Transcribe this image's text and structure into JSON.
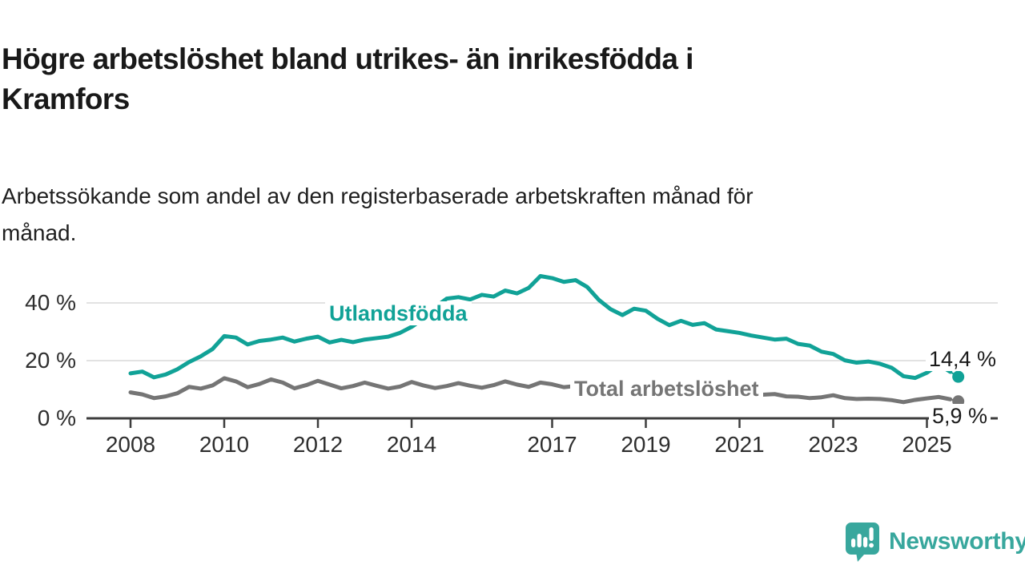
{
  "title_lines": [
    "Högre arbetslöshet bland utrikes- än inrikesfödda i",
    "Kramfors"
  ],
  "subtitle_lines": [
    "Arbetssökande som andel av den registerbaserade arbetskraften månad för",
    "månad."
  ],
  "chart_data": {
    "type": "line",
    "title": "Högre arbetslöshet bland utrikes- än inrikesfödda i Kramfors",
    "subtitle": "Arbetssökande som andel av den registerbaserade arbetskraften månad för månad.",
    "xlabel": "",
    "ylabel": "",
    "grid": "horizontal",
    "xlim": [
      2007.6,
      2026.3
    ],
    "ylim": [
      0,
      53
    ],
    "x_ticks": [
      2008,
      2010,
      2012,
      2014,
      2017,
      2019,
      2021,
      2023,
      2025
    ],
    "x_tick_labels": [
      "2008",
      "2010",
      "2012",
      "2014",
      "2017",
      "2019",
      "2021",
      "2023",
      "2025"
    ],
    "y_ticks": [
      0,
      20,
      40
    ],
    "y_tick_labels": [
      "0 %",
      "20 %",
      "40 %"
    ],
    "x": [
      2008,
      2008.25,
      2008.5,
      2008.75,
      2009,
      2009.25,
      2009.5,
      2009.75,
      2010,
      2010.25,
      2010.5,
      2010.75,
      2011,
      2011.25,
      2011.5,
      2011.75,
      2012,
      2012.25,
      2012.5,
      2012.75,
      2013,
      2013.25,
      2013.5,
      2013.75,
      2014,
      2014.25,
      2014.5,
      2014.75,
      2015,
      2015.25,
      2015.5,
      2015.75,
      2016,
      2016.25,
      2016.5,
      2016.75,
      2017,
      2017.25,
      2017.5,
      2017.75,
      2018,
      2018.25,
      2018.5,
      2018.75,
      2019,
      2019.25,
      2019.5,
      2019.75,
      2020,
      2020.25,
      2020.5,
      2020.75,
      2021,
      2021.25,
      2021.5,
      2021.75,
      2022,
      2022.25,
      2022.5,
      2022.75,
      2023,
      2023.25,
      2023.5,
      2023.75,
      2024,
      2024.25,
      2024.5,
      2024.75,
      2025,
      2025.25,
      2025.5,
      2025.67
    ],
    "series": [
      {
        "name": "Utlandsfödda",
        "color": "#11a297",
        "end_label": "14,4 %",
        "end_value": 14.4,
        "values": [
          15.6,
          16.2,
          14.2,
          15.2,
          17.0,
          19.5,
          21.5,
          24.0,
          28.5,
          28.0,
          25.6,
          26.8,
          27.3,
          28.0,
          26.6,
          27.6,
          28.3,
          26.3,
          27.2,
          26.4,
          27.3,
          27.8,
          28.3,
          29.6,
          31.7,
          34.5,
          38.5,
          41.5,
          42.0,
          41.2,
          42.8,
          42.2,
          44.3,
          43.3,
          45.2,
          49.3,
          48.6,
          47.3,
          47.9,
          45.5,
          41.0,
          37.8,
          35.8,
          38.0,
          37.3,
          34.5,
          32.3,
          33.8,
          32.4,
          33.0,
          30.8,
          30.2,
          29.6,
          28.7,
          28.0,
          27.3,
          27.6,
          25.8,
          25.2,
          23.1,
          22.3,
          20.1,
          19.3,
          19.7,
          18.9,
          17.5,
          14.6,
          14.0,
          15.8,
          18.7,
          16.1,
          14.4
        ]
      },
      {
        "name": "Total arbetslöshet",
        "color": "#757575",
        "end_label": "5,9 %",
        "end_value": 5.9,
        "values": [
          9.0,
          8.3,
          7.0,
          7.6,
          8.7,
          10.9,
          10.3,
          11.4,
          13.9,
          12.8,
          10.8,
          11.9,
          13.5,
          12.4,
          10.4,
          11.5,
          13.0,
          11.7,
          10.4,
          11.2,
          12.4,
          11.3,
          10.3,
          11.0,
          12.6,
          11.4,
          10.5,
          11.2,
          12.2,
          11.3,
          10.6,
          11.5,
          12.8,
          11.7,
          10.9,
          12.4,
          11.8,
          10.8,
          11.2,
          11.8,
          12.0,
          10.8,
          10.0,
          10.8,
          11.2,
          10.3,
          9.8,
          10.4,
          10.8,
          11.2,
          10.6,
          10.0,
          9.0,
          8.6,
          8.2,
          8.4,
          7.6,
          7.5,
          7.0,
          7.3,
          8.0,
          7.0,
          6.7,
          6.8,
          6.7,
          6.3,
          5.6,
          6.4,
          6.9,
          7.4,
          6.6,
          5.9
        ]
      }
    ]
  },
  "colors": {
    "teal": "#11a297",
    "gray": "#757575",
    "axis": "#3d3d3d",
    "gridline": "#d9d9d9",
    "text": "#191919",
    "logo_teal": "#38a79d"
  },
  "branding": {
    "logo_text": "Newsworthy"
  }
}
